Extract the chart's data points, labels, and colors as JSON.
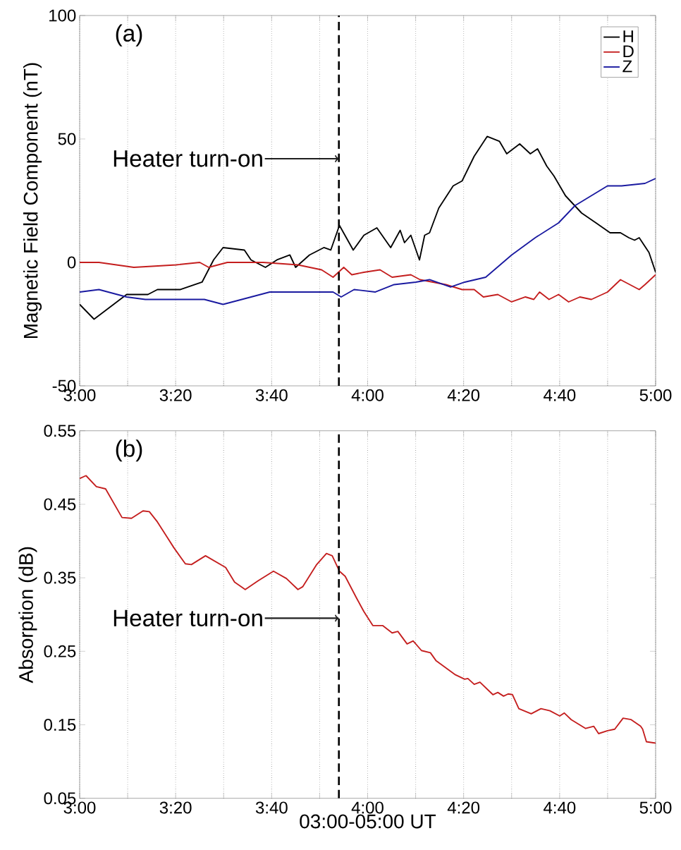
{
  "chart_data": [
    {
      "type": "line",
      "ylabel": "Magnetic Field Component (nT)",
      "xlim": [
        3,
        5
      ],
      "ylim": [
        -50,
        100
      ],
      "xticks": [
        {
          "value": 3,
          "label": "3:00"
        },
        {
          "value": 3.1667,
          "label": null
        },
        {
          "value": 3.3333,
          "label": "3:20"
        },
        {
          "value": 3.5,
          "label": null
        },
        {
          "value": 3.6667,
          "label": "3:40"
        },
        {
          "value": 3.8333,
          "label": null
        },
        {
          "value": 4,
          "label": "4:00"
        },
        {
          "value": 4.1667,
          "label": null
        },
        {
          "value": 4.3333,
          "label": "4:20"
        },
        {
          "value": 4.5,
          "label": null
        },
        {
          "value": 4.6667,
          "label": "4:40"
        },
        {
          "value": 4.8333,
          "label": null
        },
        {
          "value": 5,
          "label": "5:00"
        }
      ],
      "yticks": [
        -50,
        0,
        50,
        100
      ],
      "grid": "x",
      "legend": "top right",
      "ref_lines": [
        {
          "axis": "x",
          "value": 3.9,
          "color": "#000000",
          "line_style": "dashed"
        }
      ],
      "annotations": [
        "(a)",
        {
          "text": "Heater turn-on",
          "x": 3.9,
          "y": 42
        }
      ],
      "series": [
        {
          "name": "H",
          "color": "#000000",
          "x": [
            3.0,
            3.05,
            3.163,
            3.237,
            3.27,
            3.35,
            3.425,
            3.465,
            3.498,
            3.572,
            3.595,
            3.645,
            3.685,
            3.73,
            3.75,
            3.798,
            3.848,
            3.872,
            3.902,
            3.95,
            3.987,
            4.032,
            4.08,
            4.113,
            4.128,
            4.15,
            4.18,
            4.198,
            4.215,
            4.247,
            4.297,
            4.328,
            4.37,
            4.415,
            4.458,
            4.483,
            4.528,
            4.565,
            4.59,
            4.622,
            4.647,
            4.687,
            4.743,
            4.793,
            4.842,
            4.878,
            4.907,
            4.927,
            4.943,
            4.977,
            5.0
          ],
          "values": [
            -17,
            -23,
            -13,
            -13,
            -11,
            -11,
            -8,
            1,
            6,
            5,
            1,
            -2,
            1,
            3,
            -2,
            3,
            6,
            5,
            15,
            5,
            11,
            14,
            6,
            13,
            8,
            11,
            1,
            11,
            12,
            22,
            31,
            33,
            43,
            51,
            49,
            44,
            48,
            44,
            46,
            39,
            35,
            27,
            20,
            16,
            12,
            12,
            10,
            9,
            10,
            4,
            -4
          ]
        },
        {
          "name": "D",
          "color": "#c41e1e",
          "x": [
            3.0,
            3.067,
            3.188,
            3.335,
            3.417,
            3.448,
            3.513,
            3.637,
            3.758,
            3.84,
            3.88,
            3.917,
            3.945,
            3.987,
            4.043,
            4.085,
            4.15,
            4.182,
            4.272,
            4.328,
            4.37,
            4.402,
            4.452,
            4.5,
            4.548,
            4.577,
            4.597,
            4.63,
            4.663,
            4.698,
            4.737,
            4.777,
            4.833,
            4.878,
            4.943,
            4.963,
            5.0
          ],
          "values": [
            0,
            0,
            -2,
            -1,
            0,
            -2,
            0,
            0,
            -1,
            -3,
            -6,
            -2,
            -5,
            -4,
            -3,
            -6,
            -5,
            -7,
            -9,
            -11,
            -11,
            -14,
            -13,
            -16,
            -14,
            -15,
            -12,
            -15,
            -13,
            -16,
            -14,
            -15,
            -12,
            -7,
            -11,
            -9,
            -5
          ]
        },
        {
          "name": "Z",
          "color": "#1a1aa0",
          "x": [
            3.0,
            3.067,
            3.163,
            3.228,
            3.367,
            3.433,
            3.498,
            3.563,
            3.66,
            3.742,
            3.88,
            3.908,
            3.953,
            4.027,
            4.092,
            4.167,
            4.215,
            4.288,
            4.337,
            4.41,
            4.5,
            4.582,
            4.663,
            4.72,
            4.833,
            4.882,
            4.963,
            5.0
          ],
          "values": [
            -12,
            -11,
            -14,
            -15,
            -15,
            -15,
            -17,
            -15,
            -12,
            -12,
            -12,
            -14,
            -11,
            -12,
            -9,
            -8,
            -7,
            -10,
            -8,
            -6,
            3,
            10,
            16,
            23,
            31,
            31,
            32,
            34
          ]
        }
      ]
    },
    {
      "type": "line",
      "xlabel": "03:00-05:00 UT",
      "ylabel": "Absorption (dB)",
      "xlim": [
        3,
        5
      ],
      "ylim": [
        0.05,
        0.55
      ],
      "xticks": [
        {
          "value": 3,
          "label": "3:00"
        },
        {
          "value": 3.1667,
          "label": null
        },
        {
          "value": 3.3333,
          "label": "3:20"
        },
        {
          "value": 3.5,
          "label": null
        },
        {
          "value": 3.6667,
          "label": "3:40"
        },
        {
          "value": 3.8333,
          "label": null
        },
        {
          "value": 4,
          "label": "4:00"
        },
        {
          "value": 4.1667,
          "label": null
        },
        {
          "value": 4.3333,
          "label": "4:20"
        },
        {
          "value": 4.5,
          "label": null
        },
        {
          "value": 4.6667,
          "label": "4:40"
        },
        {
          "value": 4.8333,
          "label": null
        },
        {
          "value": 5,
          "label": "5:00"
        }
      ],
      "yticks": [
        0.05,
        0.15,
        0.25,
        0.35,
        0.45,
        0.55
      ],
      "grid": "x",
      "ref_lines": [
        {
          "axis": "x",
          "value": 3.9,
          "color": "#000000",
          "line_style": "dashed"
        }
      ],
      "annotations": [
        "(b)",
        {
          "text": "Heater turn-on",
          "x": 3.9,
          "y": 0.295
        }
      ],
      "series": [
        {
          "color": "#c41e1e",
          "x": [
            3.0,
            3.022,
            3.058,
            3.09,
            3.147,
            3.18,
            3.22,
            3.242,
            3.27,
            3.327,
            3.367,
            3.388,
            3.437,
            3.507,
            3.538,
            3.575,
            3.62,
            3.673,
            3.718,
            3.758,
            3.775,
            3.823,
            3.857,
            3.877,
            3.902,
            3.922,
            3.962,
            3.987,
            4.018,
            4.052,
            4.085,
            4.105,
            4.137,
            4.158,
            4.187,
            4.218,
            4.238,
            4.305,
            4.337,
            4.348,
            4.37,
            4.39,
            4.435,
            4.452,
            4.472,
            4.488,
            4.503,
            4.525,
            4.568,
            4.602,
            4.633,
            4.667,
            4.683,
            4.707,
            4.757,
            4.785,
            4.802,
            4.833,
            4.858,
            4.887,
            4.915,
            4.948,
            4.955,
            4.968,
            5.0
          ],
          "values": [
            0.485,
            0.489,
            0.474,
            0.471,
            0.432,
            0.431,
            0.441,
            0.44,
            0.426,
            0.391,
            0.369,
            0.368,
            0.38,
            0.364,
            0.344,
            0.334,
            0.346,
            0.359,
            0.349,
            0.334,
            0.338,
            0.368,
            0.383,
            0.38,
            0.359,
            0.352,
            0.322,
            0.304,
            0.285,
            0.285,
            0.275,
            0.277,
            0.26,
            0.264,
            0.251,
            0.248,
            0.237,
            0.218,
            0.212,
            0.213,
            0.205,
            0.208,
            0.191,
            0.194,
            0.189,
            0.192,
            0.191,
            0.172,
            0.165,
            0.172,
            0.169,
            0.162,
            0.166,
            0.157,
            0.145,
            0.148,
            0.138,
            0.142,
            0.144,
            0.159,
            0.157,
            0.148,
            0.144,
            0.127,
            0.125
          ]
        }
      ]
    }
  ]
}
